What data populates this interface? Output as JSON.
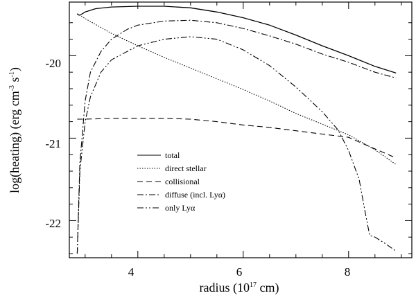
{
  "chart_data": {
    "type": "line",
    "xlabel": "radius",
    "xunit_prefix": "(10",
    "xunit_exp": "17",
    "xunit_suffix": " cm)",
    "ylabel_main": "log(heating) (erg cm",
    "ylabel_exp1": "-3",
    "ylabel_mid": " s",
    "ylabel_exp2": "-1",
    "ylabel_end": ")",
    "xlim": [
      2.7,
      9.2
    ],
    "ylim": [
      -22.45,
      -19.35
    ],
    "xticks": [
      4,
      6,
      8
    ],
    "xtick_labels": [
      "4",
      "6",
      "8"
    ],
    "yticks": [
      -22,
      -21,
      -20
    ],
    "ytick_labels": [
      "-22",
      "-21",
      "-20"
    ],
    "grid": false,
    "legend_position": "lower-left",
    "series": [
      {
        "name": "total",
        "dash": "",
        "x": [
          2.85,
          2.9,
          3.0,
          3.2,
          3.5,
          4.0,
          4.5,
          5.0,
          5.5,
          6.0,
          6.5,
          7.0,
          7.5,
          8.0,
          8.5,
          8.9
        ],
        "y": [
          -19.5,
          -19.51,
          -19.47,
          -19.43,
          -19.41,
          -19.4,
          -19.4,
          -19.42,
          -19.47,
          -19.54,
          -19.63,
          -19.75,
          -19.88,
          -20.0,
          -20.13,
          -20.21
        ]
      },
      {
        "name": "direct stellar",
        "dash": "1.5,2",
        "x": [
          2.85,
          3.0,
          3.5,
          4.0,
          4.5,
          5.0,
          5.5,
          6.0,
          6.5,
          7.0,
          7.5,
          8.0,
          8.5,
          8.9
        ],
        "y": [
          -19.49,
          -19.55,
          -19.73,
          -19.88,
          -20.02,
          -20.15,
          -20.28,
          -20.41,
          -20.55,
          -20.7,
          -20.83,
          -20.96,
          -21.14,
          -21.32
        ]
      },
      {
        "name": "collisional",
        "dash": "8,5",
        "x": [
          2.85,
          3.0,
          3.5,
          4.0,
          4.5,
          5.0,
          5.5,
          6.0,
          6.5,
          7.0,
          7.5,
          8.0,
          8.5,
          8.9
        ],
        "y": [
          -20.77,
          -20.77,
          -20.76,
          -20.76,
          -20.76,
          -20.77,
          -20.8,
          -20.84,
          -20.87,
          -20.91,
          -20.95,
          -20.99,
          -21.13,
          -21.24
        ]
      },
      {
        "name": "diffuse (incl. Lyα)",
        "dash": "9,3,2,3",
        "x": [
          2.85,
          2.9,
          3.0,
          3.1,
          3.3,
          3.5,
          3.8,
          4.0,
          4.5,
          5.0,
          5.5,
          6.0,
          6.5,
          7.0,
          7.5,
          8.0,
          8.5,
          8.9
        ],
        "y": [
          -22.4,
          -21.3,
          -20.55,
          -20.2,
          -19.95,
          -19.8,
          -19.68,
          -19.63,
          -19.58,
          -19.57,
          -19.6,
          -19.67,
          -19.76,
          -19.86,
          -19.98,
          -20.08,
          -20.2,
          -20.27
        ]
      },
      {
        "name": "only Lyα",
        "dash": "9,3,2,3,2,3",
        "x": [
          2.85,
          2.9,
          3.0,
          3.1,
          3.3,
          3.5,
          4.0,
          4.5,
          5.0,
          5.5,
          6.0,
          6.5,
          7.0,
          7.5,
          7.8,
          8.0,
          8.2,
          8.3,
          8.4,
          8.5,
          8.7,
          8.9
        ],
        "y": [
          -22.4,
          -21.4,
          -20.8,
          -20.5,
          -20.2,
          -20.05,
          -19.88,
          -19.8,
          -19.77,
          -19.8,
          -19.93,
          -20.12,
          -20.38,
          -20.68,
          -20.9,
          -21.15,
          -21.5,
          -21.85,
          -22.18,
          -22.2,
          -22.28,
          -22.37
        ]
      }
    ],
    "legend_greek": "α"
  }
}
